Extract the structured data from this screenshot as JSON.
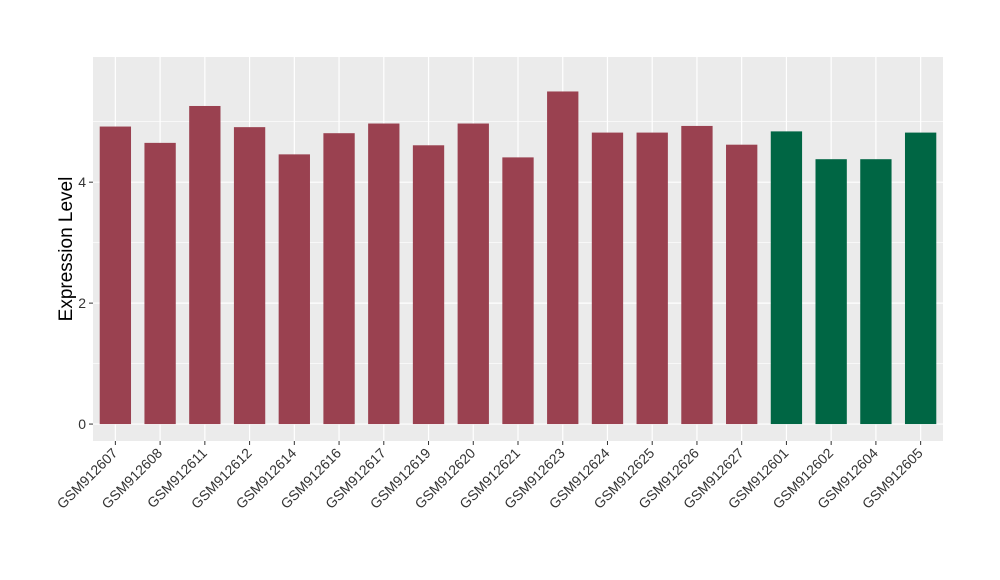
{
  "chart_data": {
    "type": "bar",
    "title": "",
    "xlabel": "",
    "ylabel": "Expression Level",
    "ylim": [
      -0.28,
      6.07
    ],
    "yticks": [
      0,
      2,
      4
    ],
    "grid": true,
    "legend": "none",
    "categories": [
      "GSM912607",
      "GSM912608",
      "GSM912611",
      "GSM912612",
      "GSM912614",
      "GSM912616",
      "GSM912617",
      "GSM912619",
      "GSM912620",
      "GSM912621",
      "GSM912623",
      "GSM912624",
      "GSM912625",
      "GSM912626",
      "GSM912627",
      "GSM912601",
      "GSM912602",
      "GSM912604",
      "GSM912605"
    ],
    "values": [
      4.92,
      4.65,
      5.26,
      4.91,
      4.46,
      4.81,
      4.97,
      4.61,
      4.97,
      4.41,
      5.5,
      4.82,
      4.82,
      4.93,
      4.62,
      4.84,
      4.38,
      4.38,
      4.82
    ],
    "bar_colors": [
      "#9a4150",
      "#9a4150",
      "#9a4150",
      "#9a4150",
      "#9a4150",
      "#9a4150",
      "#9a4150",
      "#9a4150",
      "#9a4150",
      "#9a4150",
      "#9a4150",
      "#9a4150",
      "#9a4150",
      "#9a4150",
      "#9a4150",
      "#006644",
      "#006644",
      "#006644",
      "#006644"
    ],
    "panel_background": "#ebebeb",
    "gridline_color": "#ffffff"
  }
}
